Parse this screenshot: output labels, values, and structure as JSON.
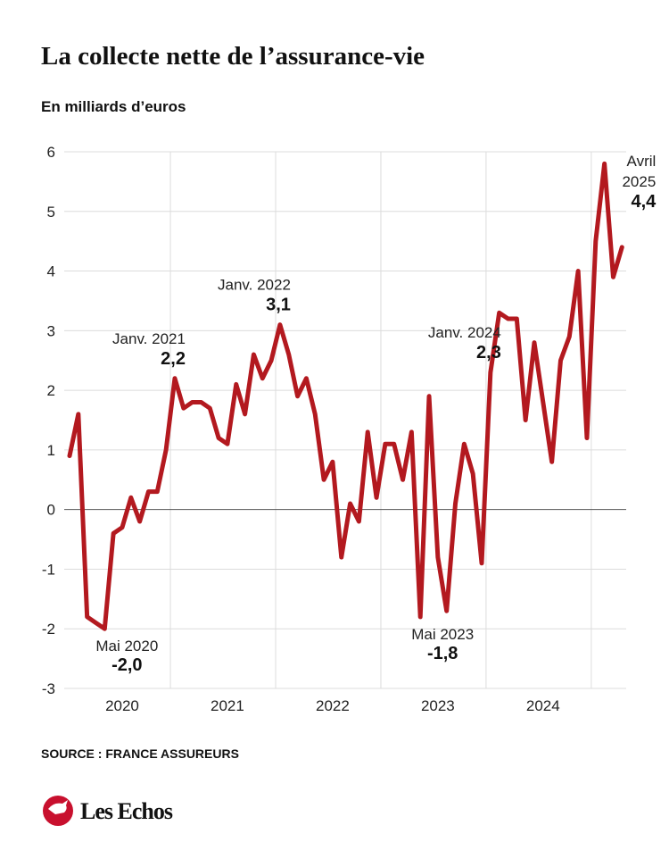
{
  "chart_data": {
    "type": "line",
    "title": "La collecte nette de l’assurance-vie",
    "subtitle": "En milliards d’euros",
    "source": "SOURCE : FRANCE ASSUREURS",
    "brand": "Les Echos",
    "categories": [
      null,
      null,
      null,
      null,
      null,
      null,
      "2020",
      null,
      null,
      null,
      null,
      null,
      null,
      null,
      null,
      null,
      null,
      null,
      "2021",
      null,
      null,
      null,
      null,
      null,
      null,
      null,
      null,
      null,
      null,
      null,
      "2022",
      null,
      null,
      null,
      null,
      null,
      null,
      null,
      null,
      null,
      null,
      null,
      "2023",
      null,
      null,
      null,
      null,
      null,
      null,
      null,
      null,
      null,
      null,
      null,
      "2024",
      null,
      null,
      null,
      null,
      null,
      null,
      null,
      null,
      null
    ],
    "series": [
      {
        "name": null,
        "color": "#b3191f",
        "values": [
          0.9,
          1.6,
          -1.8,
          -1.9,
          -2.0,
          -0.4,
          -0.3,
          0.2,
          -0.2,
          0.3,
          0.3,
          1.0,
          2.2,
          1.7,
          1.8,
          1.8,
          1.7,
          1.2,
          1.1,
          2.1,
          1.6,
          2.6,
          2.2,
          2.5,
          3.1,
          2.6,
          1.9,
          2.2,
          1.6,
          0.5,
          0.8,
          -0.8,
          0.1,
          -0.2,
          1.3,
          0.2,
          1.1,
          1.1,
          0.5,
          1.3,
          -1.8,
          1.9,
          -0.8,
          -1.7,
          0.1,
          1.1,
          0.6,
          -0.9,
          2.3,
          3.3,
          3.2,
          3.2,
          1.5,
          2.8,
          1.8,
          0.8,
          2.5,
          2.9,
          4.0,
          1.2,
          4.5,
          5.8,
          3.9,
          4.4
        ],
        "value_labels": [
          null,
          null,
          null,
          null,
          "-2,0",
          null,
          null,
          null,
          null,
          null,
          null,
          null,
          "2,2",
          null,
          null,
          null,
          null,
          null,
          null,
          null,
          null,
          null,
          null,
          null,
          "3,1",
          null,
          null,
          null,
          null,
          null,
          null,
          null,
          null,
          null,
          null,
          null,
          null,
          null,
          null,
          null,
          "-1,8",
          null,
          null,
          null,
          null,
          null,
          null,
          null,
          "2,3",
          null,
          null,
          null,
          null,
          null,
          null,
          null,
          null,
          null,
          null,
          null,
          null,
          null,
          null,
          "4,4"
        ],
        "notes": [
          null,
          null,
          null,
          null,
          [
            "Mai 2020"
          ],
          null,
          null,
          null,
          null,
          null,
          null,
          null,
          [
            "Janv. 2021"
          ],
          null,
          null,
          null,
          null,
          null,
          null,
          null,
          null,
          null,
          null,
          null,
          [
            "Janv. 2022"
          ],
          null,
          null,
          null,
          null,
          null,
          null,
          null,
          null,
          null,
          null,
          null,
          null,
          null,
          null,
          null,
          [
            "Mai 2023"
          ],
          null,
          null,
          null,
          null,
          null,
          null,
          null,
          [
            "Janv. 2024"
          ],
          null,
          null,
          null,
          null,
          null,
          null,
          null,
          null,
          null,
          null,
          null,
          null,
          null,
          null,
          [
            "Avril",
            "2025"
          ]
        ]
      }
    ],
    "ylim": [
      -3,
      6
    ],
    "yticks": [
      -3,
      -2,
      -1,
      0,
      1,
      2,
      3,
      4,
      5,
      6
    ],
    "grid": true
  }
}
